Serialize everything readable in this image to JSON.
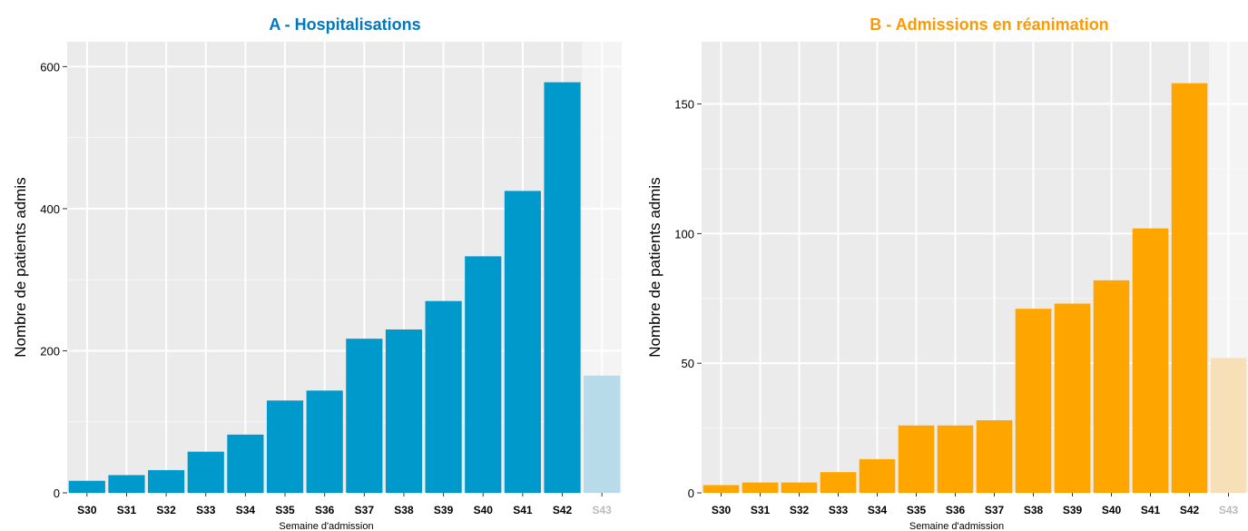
{
  "chart_data": [
    {
      "type": "bar",
      "title": "A - Hospitalisations",
      "title_color": "#0077c0",
      "bar_color": "#0099cc",
      "partial_color": "#b7dbe8",
      "ylabel": "Nombre de patients admis",
      "xlabel": "Semaine d'admission",
      "categories": [
        "S30",
        "S31",
        "S32",
        "S33",
        "S34",
        "S35",
        "S36",
        "S37",
        "S38",
        "S39",
        "S40",
        "S41",
        "S42",
        "S43"
      ],
      "values": [
        17,
        25,
        32,
        58,
        82,
        130,
        144,
        217,
        230,
        270,
        333,
        425,
        578,
        165
      ],
      "partial": [
        false,
        false,
        false,
        false,
        false,
        false,
        false,
        false,
        false,
        false,
        false,
        false,
        false,
        true
      ],
      "yticks": [
        0,
        200,
        400,
        600
      ],
      "ylim": [
        0,
        635
      ],
      "grid": true
    },
    {
      "type": "bar",
      "title": "B - Admissions en réanimation",
      "title_color": "#ff9900",
      "bar_color": "#ffa500",
      "partial_color": "#f7dfb8",
      "ylabel": "Nombre de patients admis",
      "xlabel": "Semaine d'admission",
      "categories": [
        "S30",
        "S31",
        "S32",
        "S33",
        "S34",
        "S35",
        "S36",
        "S37",
        "S38",
        "S39",
        "S40",
        "S41",
        "S42",
        "S43"
      ],
      "values": [
        3,
        4,
        4,
        8,
        13,
        26,
        26,
        28,
        71,
        73,
        82,
        102,
        158,
        52
      ],
      "partial": [
        false,
        false,
        false,
        false,
        false,
        false,
        false,
        false,
        false,
        false,
        false,
        false,
        false,
        true
      ],
      "yticks": [
        0,
        50,
        100,
        150
      ],
      "ylim": [
        0,
        174
      ],
      "grid": true
    }
  ]
}
